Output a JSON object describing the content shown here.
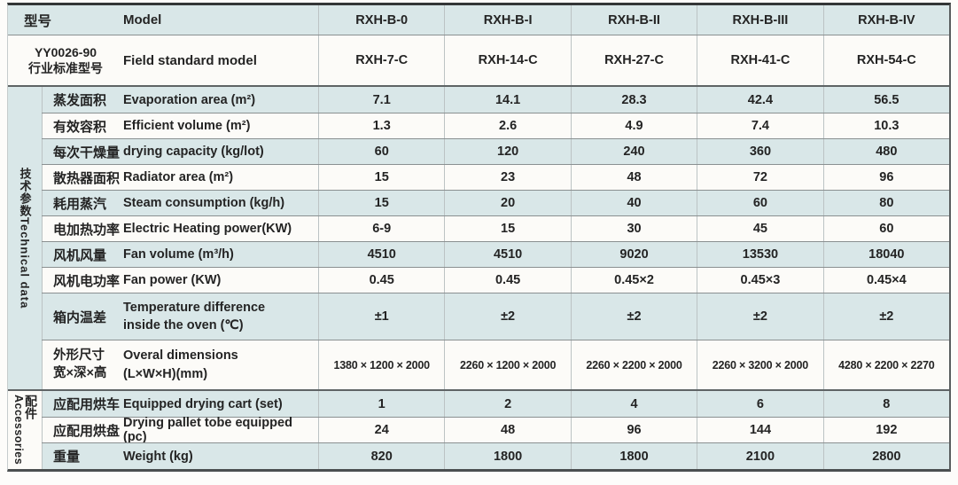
{
  "table": {
    "colors": {
      "row_blue": "#d9e7e8",
      "row_white": "#fcfbf8",
      "row_line": "#8a9091",
      "section_line": "#5f6465",
      "column_line": "#bcc3c4",
      "text": "#242424"
    },
    "header": {
      "cn": "型号",
      "en": "Model",
      "models": [
        "RXH-B-0",
        "RXH-B-I",
        "RXH-B-II",
        "RXH-B-III",
        "RXH-B-IV"
      ]
    },
    "standard": {
      "cn_line1": "YY0026-90",
      "cn_line2": "行业标准型号",
      "en": "Field standard model",
      "models": [
        "RXH-7-C",
        "RXH-14-C",
        "RXH-27-C",
        "RXH-41-C",
        "RXH-54-C"
      ]
    },
    "technical": {
      "group_label": "技术参数Technical data",
      "rows": [
        {
          "cn": "蒸发面积",
          "en": "Evaporation area (m²)",
          "values": [
            "7.1",
            "14.1",
            "28.3",
            "42.4",
            "56.5"
          ]
        },
        {
          "cn": "有效容积",
          "en": "Efficient volume (m²)",
          "values": [
            "1.3",
            "2.6",
            "4.9",
            "7.4",
            "10.3"
          ]
        },
        {
          "cn": "每次干燥量",
          "en": "drying capacity (kg/lot)",
          "values": [
            "60",
            "120",
            "240",
            "360",
            "480"
          ]
        },
        {
          "cn": "散热器面积",
          "en": "Radiator area (m²)",
          "values": [
            "15",
            "23",
            "48",
            "72",
            "96"
          ]
        },
        {
          "cn": "耗用蒸汽",
          "en": "Steam consumption (kg/h)",
          "values": [
            "15",
            "20",
            "40",
            "60",
            "80"
          ]
        },
        {
          "cn": "电加热功率",
          "en": "Electric Heating power(KW)",
          "values": [
            "6-9",
            "15",
            "30",
            "45",
            "60"
          ]
        },
        {
          "cn": "风机风量",
          "en": "Fan volume (m³/h)",
          "values": [
            "4510",
            "4510",
            "9020",
            "13530",
            "18040"
          ]
        },
        {
          "cn": "风机电功率",
          "en": "Fan power (KW)",
          "values": [
            "0.45",
            "0.45",
            "0.45×2",
            "0.45×3",
            "0.45×4"
          ]
        },
        {
          "cn": "箱内温差",
          "en_line1": "Temperature difference",
          "en_line2": "inside the oven (℃)",
          "values": [
            "±1",
            "±2",
            "±2",
            "±2",
            "±2"
          ]
        },
        {
          "cn_line1": "外形尺寸",
          "cn_line2": "宽×深×高",
          "en_line1": "Overal dimensions",
          "en_line2": "(L×W×H)(mm)",
          "values": [
            "1380 × 1200 × 2000",
            "2260 × 1200 × 2000",
            "2260 × 2200 × 2000",
            "2260 × 3200 × 2000",
            "4280 × 2200 × 2270"
          ]
        }
      ]
    },
    "accessories": {
      "group_cn": "配件",
      "group_en": "Accessories",
      "rows": [
        {
          "cn": "应配用烘车",
          "en": "Equipped drying cart (set)",
          "values": [
            "1",
            "2",
            "4",
            "6",
            "8"
          ]
        },
        {
          "cn": "应配用烘盘",
          "en": "Drying pallet tobe equipped (pc)",
          "values": [
            "24",
            "48",
            "96",
            "144",
            "192"
          ]
        },
        {
          "cn": "重量",
          "en": "Weight (kg)",
          "values": [
            "820",
            "1800",
            "1800",
            "2100",
            "2800"
          ]
        }
      ]
    }
  }
}
